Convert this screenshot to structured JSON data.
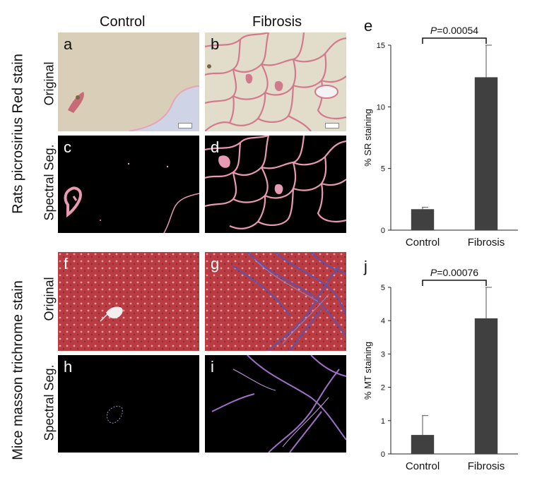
{
  "columns": {
    "control": "Control",
    "fibrosis": "Fibrosis"
  },
  "rows": {
    "top_group": "Rats picrosirius Red stain",
    "bottom_group": "Mice masson trichrome stain",
    "original": "Original",
    "spectral": "Spectral Seg."
  },
  "panels": {
    "a": "a",
    "b": "b",
    "c": "c",
    "d": "d",
    "f": "f",
    "g": "g",
    "h": "h",
    "i": "i"
  },
  "colors": {
    "sirius_bg": "#d9cfb9",
    "sirius_red": "#d27a8c",
    "trichrome_red": "#b93c43",
    "trichrome_blue": "#5a54b0",
    "seg_pink": "#e89ab5",
    "seg_purple": "#a070c8",
    "bar_fill": "#404040"
  },
  "chart_data": [
    {
      "type": "bar",
      "letter": "e",
      "categories": [
        "Control",
        "Fibrosis"
      ],
      "values": [
        1.7,
        12.4
      ],
      "errors": [
        0.15,
        2.6
      ],
      "ylabel": "% SR staining",
      "ylim": [
        0,
        15
      ],
      "yticks": [
        0,
        5,
        10,
        15
      ],
      "annotation_prefix": "P",
      "annotation_value": "=0.00054",
      "grid": false
    },
    {
      "type": "bar",
      "letter": "j",
      "categories": [
        "Control",
        "Fibrosis"
      ],
      "values": [
        0.57,
        4.07
      ],
      "errors": [
        0.58,
        0.93
      ],
      "ylabel": "% MT staining",
      "ylim": [
        0,
        5
      ],
      "yticks": [
        0,
        1,
        2,
        3,
        4,
        5
      ],
      "annotation_prefix": "P",
      "annotation_value": "=0.00076",
      "grid": false
    }
  ]
}
